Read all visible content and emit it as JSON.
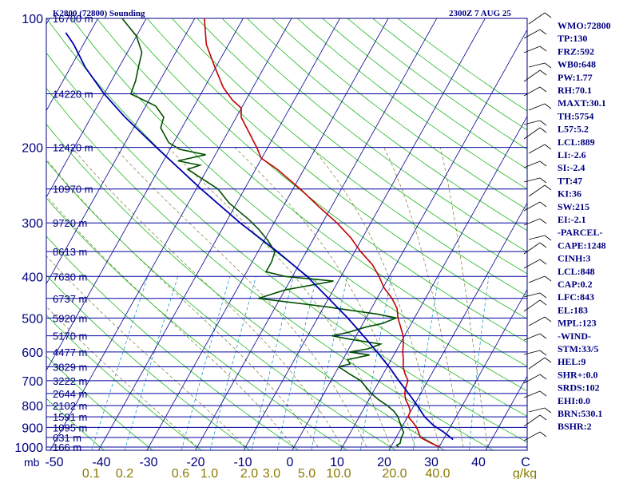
{
  "header": {
    "station": "K2800 (72800) Sounding",
    "time": "2300Z  7 AUG 25"
  },
  "units": {
    "pressure": "mb",
    "mixing_ratio": "g/kg"
  },
  "indices": [
    "WMO:72800",
    "TP:130",
    "FRZ:592",
    "WB0:648",
    "PW:1.77",
    "RH:70.1",
    "MAXT:30.1",
    "TH:5754",
    "L57:5.2",
    "LCL:889",
    "LI:-2.6",
    "SI:-2.4",
    "TT:47",
    "KI:36",
    "SW:215",
    "EI:-2.1",
    "-PARCEL-",
    "CAPE:1248",
    "CINH:3",
    "LCL:848",
    "CAP:0.2",
    "LFC:843",
    "EL:183",
    "MPL:123",
    "-WIND-",
    "STM:33/5",
    "HEL:9",
    "SHR+:0.0",
    "SRDS:102",
    "EHI:0.0",
    "BRN:530.1",
    "BSHR:2"
  ],
  "colors": {
    "isobar": "#0000a0",
    "isotherm": "#000090",
    "dry_adiabat": "#00b000",
    "moist_adiabat": "#7a7a30",
    "mixing_ratio": "#0090c0",
    "temperature": "#c00000",
    "dewpoint": "#005000",
    "parcel": "#0000b0",
    "wind": "#000000",
    "mixing_ratio_labels": "#8a7a00"
  },
  "chart_data": {
    "type": "skew-t log-p",
    "y_axis": {
      "label": "mb",
      "scale": "log",
      "range": [
        1000,
        100
      ],
      "ticks": [
        100,
        200,
        300,
        400,
        500,
        600,
        700,
        800,
        900,
        1000
      ]
    },
    "x_axis": {
      "label": "C",
      "range": [
        -50,
        50
      ],
      "ticks": [
        -50,
        -40,
        -30,
        -20,
        -10,
        0,
        10,
        20,
        30,
        40
      ]
    },
    "x_tick_labels": [
      "-50",
      "-40",
      "-30",
      "-20",
      "-10",
      "0",
      "10",
      "20",
      "30",
      "40",
      "C"
    ],
    "mixing_ratio_ticks": [
      "0.1",
      "0.2",
      "0.6",
      "1.0",
      "2.0",
      "3.0",
      "5.0",
      "10.0",
      "20.0",
      "40.0",
      "g/kg"
    ],
    "height_labels": [
      {
        "p": 100,
        "label": "16700 m"
      },
      {
        "p": 150,
        "label": "14220 m"
      },
      {
        "p": 200,
        "label": "12420 m"
      },
      {
        "p": 250,
        "label": "10970 m"
      },
      {
        "p": 300,
        "label": "9720 m"
      },
      {
        "p": 350,
        "label": "8613 m"
      },
      {
        "p": 400,
        "label": "7630 m"
      },
      {
        "p": 450,
        "label": "6737 m"
      },
      {
        "p": 500,
        "label": "5920 m"
      },
      {
        "p": 550,
        "label": "5170 m"
      },
      {
        "p": 600,
        "label": "4477 m"
      },
      {
        "p": 650,
        "label": "3829 m"
      },
      {
        "p": 700,
        "label": "3222 m"
      },
      {
        "p": 750,
        "label": "2644 m"
      },
      {
        "p": 800,
        "label": "2102 m"
      },
      {
        "p": 850,
        "label": "1591 m"
      },
      {
        "p": 900,
        "label": "1095 m"
      },
      {
        "p": 950,
        "label": "631 m"
      },
      {
        "p": 1000,
        "label": "166 m"
      }
    ],
    "series": [
      {
        "key": "temperature",
        "points": [
          [
            1000,
            30.1
          ],
          [
            975,
            27.5
          ],
          [
            950,
            25.0
          ],
          [
            925,
            24.1
          ],
          [
            900,
            23.1
          ],
          [
            875,
            21.7
          ],
          [
            850,
            20.1
          ],
          [
            825,
            19.9
          ],
          [
            800,
            18.9
          ],
          [
            775,
            17.6
          ],
          [
            750,
            16.7
          ],
          [
            725,
            16.2
          ],
          [
            700,
            15.9
          ],
          [
            675,
            14.5
          ],
          [
            650,
            13.3
          ],
          [
            625,
            12.5
          ],
          [
            600,
            11.5
          ],
          [
            575,
            10.7
          ],
          [
            550,
            9.7
          ],
          [
            525,
            8.2
          ],
          [
            500,
            6.6
          ],
          [
            475,
            5.3
          ],
          [
            450,
            3.1
          ],
          [
            425,
            0.2
          ],
          [
            400,
            -2.1
          ],
          [
            375,
            -4.9
          ],
          [
            350,
            -8.8
          ],
          [
            325,
            -12.4
          ],
          [
            300,
            -17.0
          ],
          [
            275,
            -22.6
          ],
          [
            250,
            -28.5
          ],
          [
            225,
            -35.5
          ],
          [
            212,
            -40.1
          ],
          [
            200,
            -42.3
          ],
          [
            185,
            -45.5
          ],
          [
            170,
            -49.0
          ],
          [
            162,
            -50.0
          ],
          [
            155,
            -52.8
          ],
          [
            145,
            -56.1
          ],
          [
            130,
            -60.2
          ],
          [
            115,
            -64.6
          ],
          [
            100,
            -68.0
          ]
        ]
      },
      {
        "key": "dewpoint",
        "points": [
          [
            1000,
            21.6
          ],
          [
            990,
            21.0
          ],
          [
            980,
            21.5
          ],
          [
            950,
            21.1
          ],
          [
            925,
            21.0
          ],
          [
            900,
            20.0
          ],
          [
            875,
            19.0
          ],
          [
            850,
            18.0
          ],
          [
            825,
            16.5
          ],
          [
            800,
            14.5
          ],
          [
            775,
            12.0
          ],
          [
            750,
            9.8
          ],
          [
            725,
            8.0
          ],
          [
            700,
            6.1
          ],
          [
            675,
            3.0
          ],
          [
            650,
            0.0
          ],
          [
            640,
            2.0
          ],
          [
            625,
            1.0
          ],
          [
            610,
            5.0
          ],
          [
            600,
            0.5
          ],
          [
            590,
            4.0
          ],
          [
            575,
            6.0
          ],
          [
            560,
            -1.0
          ],
          [
            550,
            -5.0
          ],
          [
            540,
            -2.0
          ],
          [
            525,
            1.0
          ],
          [
            515,
            4.0
          ],
          [
            500,
            6.2
          ],
          [
            490,
            2.0
          ],
          [
            470,
            -10.0
          ],
          [
            450,
            -24.5
          ],
          [
            430,
            -20.0
          ],
          [
            410,
            -11.0
          ],
          [
            400,
            -21.5
          ],
          [
            390,
            -26.0
          ],
          [
            370,
            -26.0
          ],
          [
            350,
            -26.5
          ],
          [
            330,
            -29.2
          ],
          [
            310,
            -32.5
          ],
          [
            295,
            -35.5
          ],
          [
            270,
            -41.5
          ],
          [
            250,
            -45.5
          ],
          [
            235,
            -50.5
          ],
          [
            225,
            -54.0
          ],
          [
            220,
            -52.0
          ],
          [
            215,
            -57.0
          ],
          [
            208,
            -52.0
          ],
          [
            202,
            -58.0
          ],
          [
            195,
            -61.0
          ],
          [
            180,
            -64.4
          ],
          [
            170,
            -65.0
          ],
          [
            160,
            -68.0
          ],
          [
            150,
            -74.5
          ],
          [
            140,
            -75.0
          ],
          [
            130,
            -76.0
          ],
          [
            120,
            -77.0
          ],
          [
            110,
            -80.0
          ],
          [
            100,
            -85.0
          ]
        ]
      },
      {
        "key": "parcel",
        "points": [
          [
            960,
            32.0
          ],
          [
            920,
            29.0
          ],
          [
            890,
            26.3
          ],
          [
            850,
            23.5
          ],
          [
            800,
            20.7
          ],
          [
            750,
            17.5
          ],
          [
            700,
            14.0
          ],
          [
            650,
            10.4
          ],
          [
            600,
            6.2
          ],
          [
            550,
            1.5
          ],
          [
            500,
            -3.8
          ],
          [
            450,
            -10.0
          ],
          [
            400,
            -17.0
          ],
          [
            350,
            -26.0
          ],
          [
            300,
            -37.0
          ],
          [
            250,
            -49.0
          ],
          [
            200,
            -63.0
          ],
          [
            170,
            -73.0
          ],
          [
            150,
            -80.0
          ],
          [
            130,
            -87.0
          ],
          [
            115,
            -92.0
          ],
          [
            108,
            -95.0
          ]
        ]
      }
    ]
  }
}
